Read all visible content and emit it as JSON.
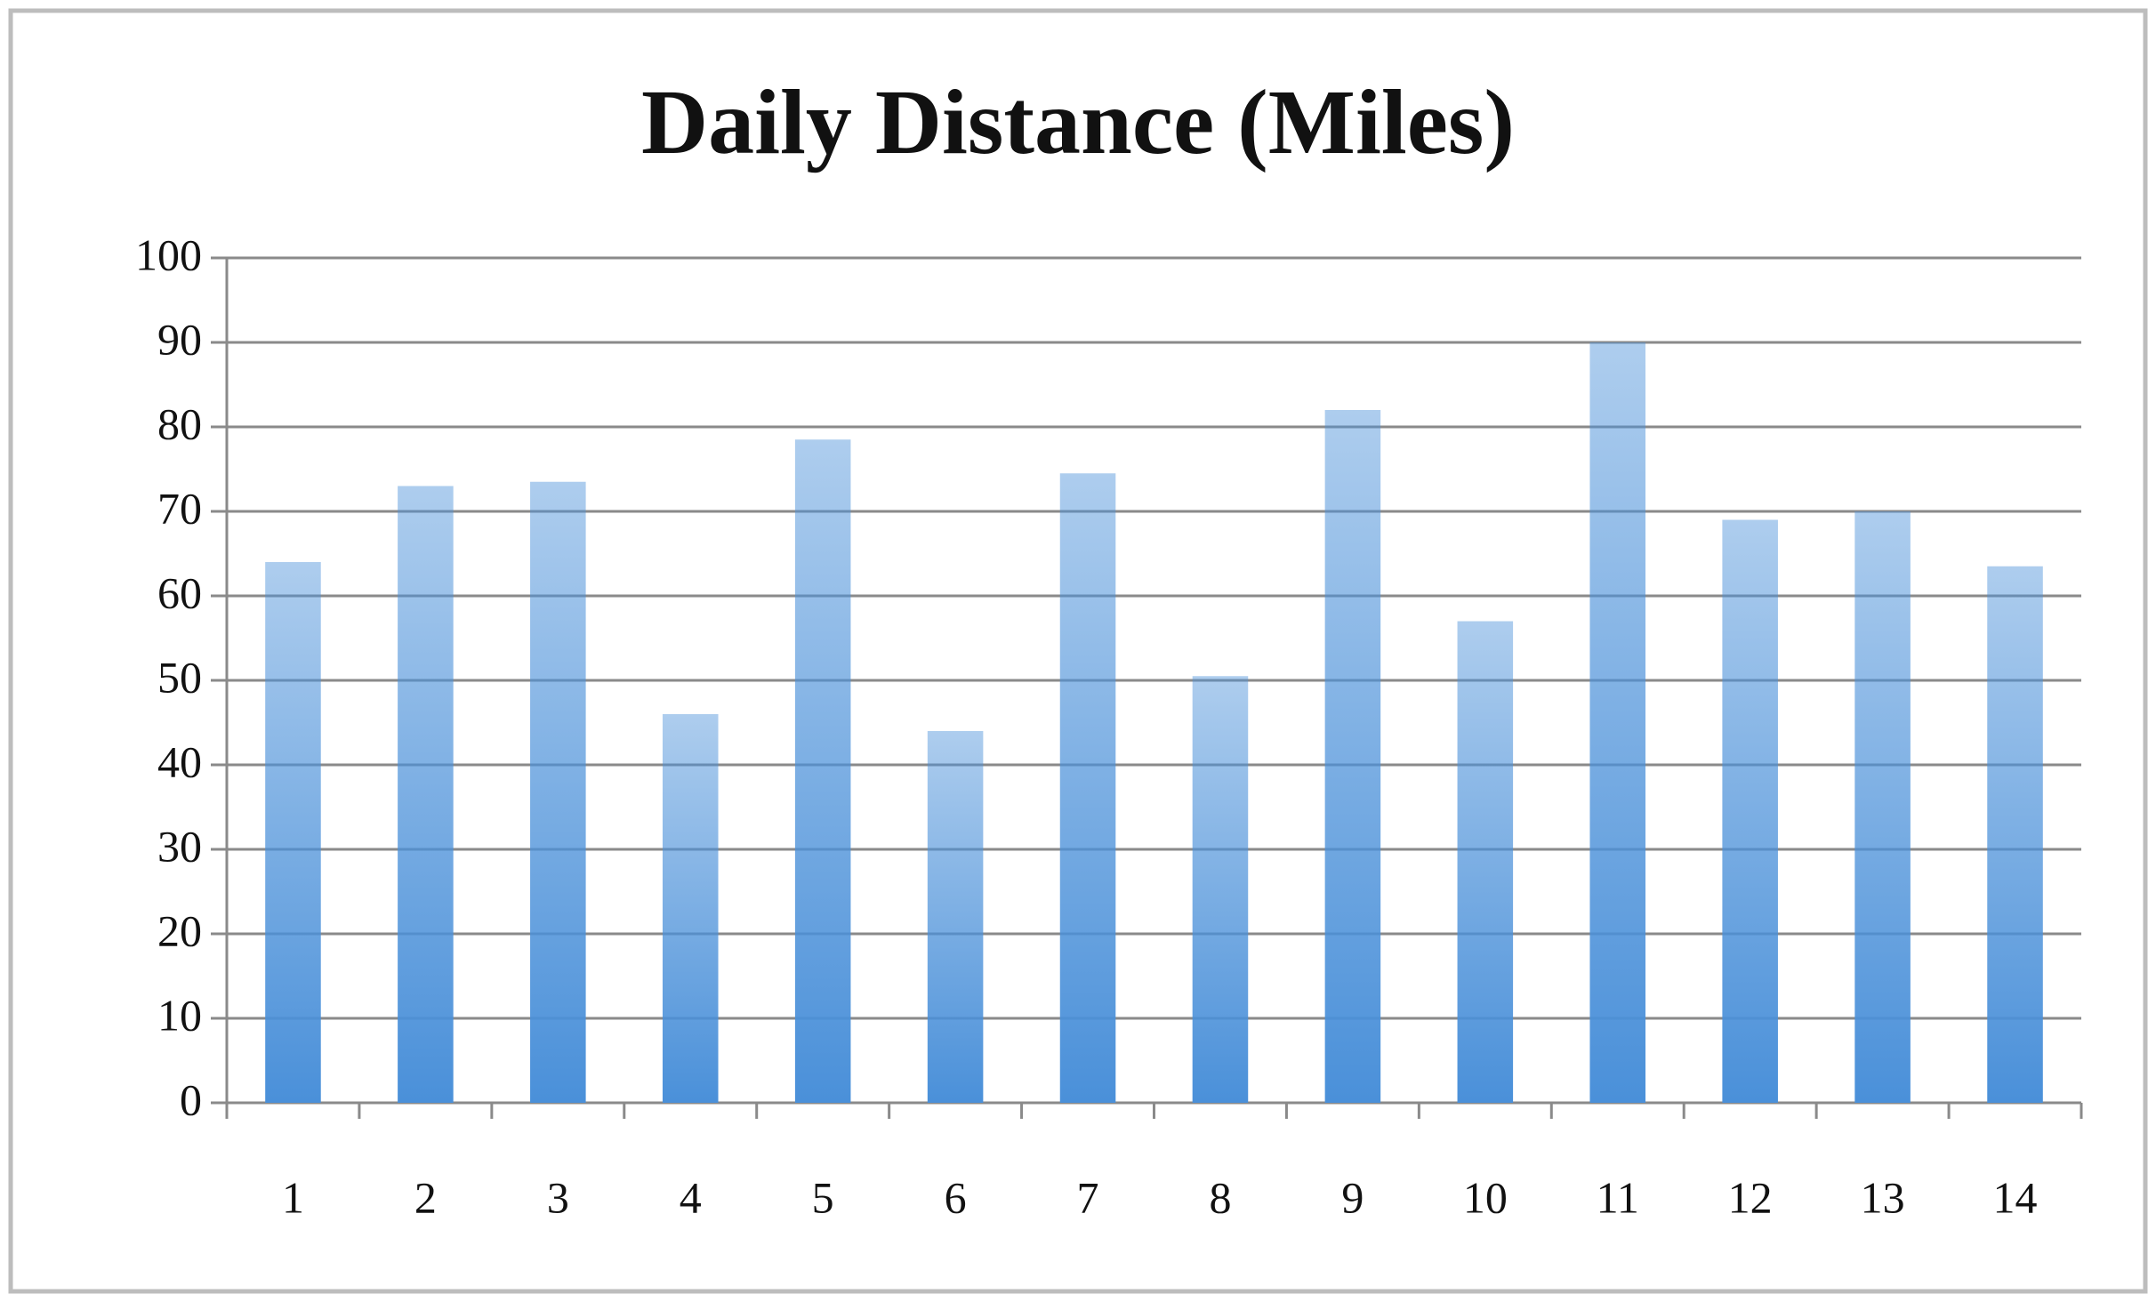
{
  "chart_data": {
    "type": "bar",
    "title": "Daily Distance (Miles)",
    "categories": [
      "1",
      "2",
      "3",
      "4",
      "5",
      "6",
      "7",
      "8",
      "9",
      "10",
      "11",
      "12",
      "13",
      "14"
    ],
    "values": [
      64,
      73,
      73.5,
      46,
      78.5,
      44,
      74.5,
      50.5,
      82,
      57,
      90,
      69,
      70,
      63.5
    ],
    "color": "#4a90d9",
    "ylim": [
      0,
      100
    ],
    "yticks": [
      0,
      10,
      20,
      30,
      40,
      50,
      60,
      70,
      80,
      90,
      100
    ],
    "grid": true
  }
}
